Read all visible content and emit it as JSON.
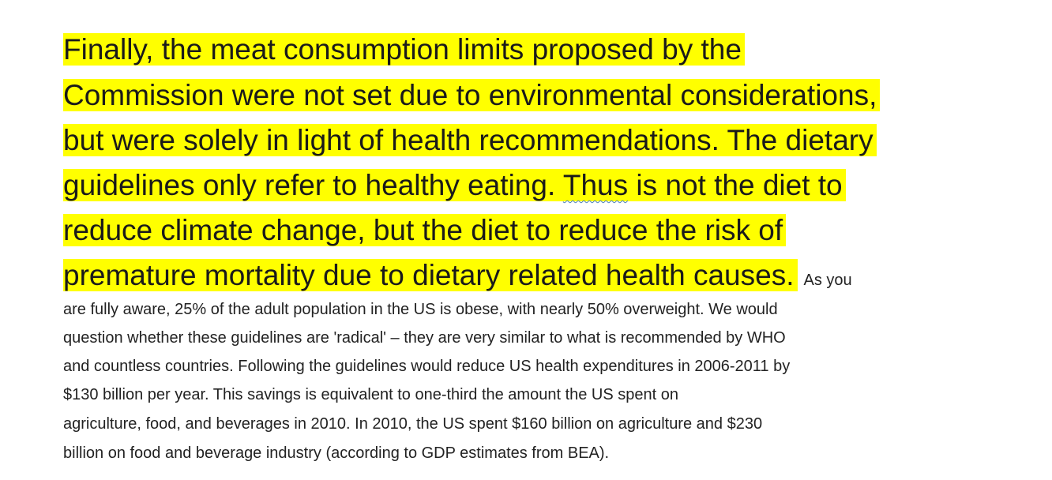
{
  "highlighted_lines": [
    "Finally, the meat consumption limits proposed by the",
    "Commission were not set due to environmental considerations,",
    "but were solely in light of health recommendations. The dietary",
    "reduce climate change, but the diet to reduce the risk of",
    "premature mortality due to dietary related health causes."
  ],
  "highlighted_line_4": {
    "before": "guidelines only refer to healthy eating. ",
    "flagged_word": "Thus",
    "after": " is not the diet to"
  },
  "body_lines": [
    "As you",
    "are fully aware, 25% of the adult population in the US is obese, with nearly 50% overweight. We would",
    "question whether these guidelines are 'radical' – they are very similar to what is recommended by WHO",
    "and countless countries. Following the guidelines would reduce US health expenditures in 2006-2011 by",
    "$130 billion per year. This savings is equivalent to one-third the amount the US spent on",
    "agriculture, food, and beverages in 2010. In 2010, the US spent $160 billion on agriculture and $230",
    "billion on food and beverage industry (according to GDP estimates from BEA)."
  ]
}
